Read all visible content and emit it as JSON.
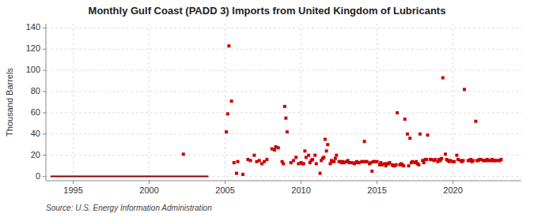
{
  "chart_data": {
    "type": "scatter",
    "title": "Monthly Gulf Coast (PADD 3) Imports from United Kingdom of Lubricants",
    "ylabel": "Thousand Barrels",
    "source": "Source: U.S. Energy Information Administration",
    "xlim": [
      1993.2,
      2024.5
    ],
    "ylim": [
      -4,
      144
    ],
    "xticks": [
      1995,
      2000,
      2005,
      2010,
      2015,
      2020
    ],
    "yticks": [
      0,
      20,
      40,
      60,
      80,
      100,
      120,
      140
    ],
    "grid": true,
    "series": [
      {
        "type": "line",
        "color": "#8b0000",
        "line_style": "solid",
        "x": [
          1993.5,
          2003.9
        ],
        "values": [
          0,
          0
        ]
      },
      {
        "type": "scatter",
        "color": "#cc0000",
        "marker": "square",
        "x": [
          2002.25,
          2005.08,
          2005.17,
          2005.25,
          2005.42,
          2005.58,
          2005.75,
          2005.83,
          2006.17,
          2006.5,
          2006.67,
          2006.92,
          2007.08,
          2007.25,
          2007.42,
          2007.58,
          2007.75,
          2008.08,
          2008.25,
          2008.33,
          2008.5,
          2008.75,
          2008.83,
          2008.92,
          2009.0,
          2009.08,
          2009.33,
          2009.5,
          2009.67,
          2009.83,
          2010.0,
          2010.08,
          2010.17,
          2010.25,
          2010.33,
          2010.5,
          2010.58,
          2010.67,
          2010.75,
          2010.92,
          2011.0,
          2011.25,
          2011.33,
          2011.42,
          2011.5,
          2011.58,
          2011.67,
          2011.75,
          2011.92,
          2012.0,
          2012.08,
          2012.17,
          2012.25,
          2012.33,
          2012.5,
          2012.58,
          2012.67,
          2012.75,
          2012.83,
          2013.0,
          2013.08,
          2013.17,
          2013.33,
          2013.5,
          2013.58,
          2013.67,
          2013.75,
          2013.83,
          2014.0,
          2014.08,
          2014.17,
          2014.25,
          2014.33,
          2014.5,
          2014.58,
          2014.67,
          2014.75,
          2014.83,
          2015.0,
          2015.17,
          2015.25,
          2015.33,
          2015.5,
          2015.58,
          2015.67,
          2015.75,
          2015.83,
          2016.0,
          2016.08,
          2016.17,
          2016.25,
          2016.33,
          2016.5,
          2016.58,
          2016.67,
          2016.75,
          2016.83,
          2017.0,
          2017.08,
          2017.17,
          2017.25,
          2017.33,
          2017.5,
          2017.58,
          2017.67,
          2017.75,
          2017.83,
          2018.0,
          2018.08,
          2018.17,
          2018.25,
          2018.33,
          2018.5,
          2018.58,
          2018.75,
          2018.83,
          2019.0,
          2019.08,
          2019.17,
          2019.25,
          2019.33,
          2019.5,
          2019.58,
          2019.67,
          2019.75,
          2019.83,
          2020.0,
          2020.08,
          2020.25,
          2020.33,
          2020.5,
          2020.58,
          2020.67,
          2020.75,
          2021.0,
          2021.08,
          2021.17,
          2021.25,
          2021.33,
          2021.5,
          2021.58,
          2021.67,
          2021.75,
          2021.83,
          2022.0,
          2022.08,
          2022.17,
          2022.25,
          2022.33,
          2022.5,
          2022.58,
          2022.67,
          2022.75,
          2022.83,
          2023.0,
          2023.08,
          2023.17
        ],
        "values": [
          21,
          42,
          59,
          123,
          71,
          13,
          3,
          14,
          2,
          16,
          15,
          20,
          14,
          15,
          12,
          14,
          16,
          26,
          25,
          28,
          27,
          14,
          12,
          66,
          55,
          42,
          13,
          15,
          18,
          12,
          13,
          12,
          12,
          24,
          18,
          20,
          13,
          15,
          16,
          20,
          12,
          3,
          15,
          17,
          18,
          35,
          24,
          30,
          12,
          15,
          14,
          14,
          17,
          20,
          14,
          14,
          13,
          14,
          13,
          14,
          15,
          13,
          13,
          12,
          13,
          14,
          13,
          13,
          14,
          14,
          33,
          14,
          14,
          12,
          13,
          5,
          14,
          14,
          14,
          11,
          13,
          11,
          12,
          10,
          12,
          12,
          13,
          11,
          10,
          10,
          11,
          60,
          11,
          12,
          11,
          10,
          54,
          40,
          10,
          36,
          13,
          14,
          13,
          14,
          12,
          11,
          40,
          15,
          13,
          16,
          16,
          39,
          16,
          16,
          15,
          16,
          14,
          16,
          15,
          17,
          93,
          21,
          16,
          15,
          14,
          15,
          14,
          14,
          20,
          16,
          15,
          14,
          15,
          82,
          15,
          15,
          16,
          14,
          15,
          52,
          15,
          15,
          16,
          16,
          15,
          15,
          15,
          16,
          15,
          15,
          16,
          15,
          15,
          15,
          15,
          15,
          16
        ]
      }
    ]
  }
}
